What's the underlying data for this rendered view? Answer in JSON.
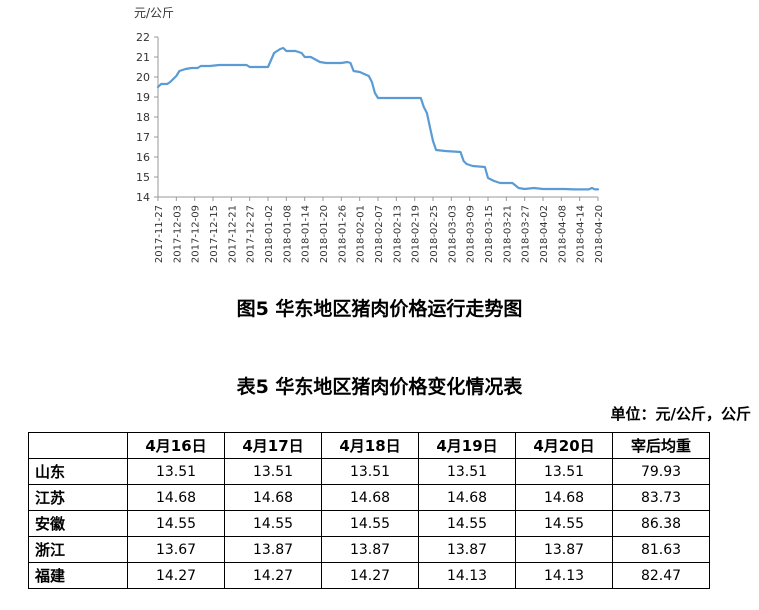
{
  "chart_data": {
    "type": "line",
    "title": "",
    "ylabel": "元/公斤",
    "xlabel": "",
    "ylim": [
      14,
      22
    ],
    "yticks": [
      14,
      15,
      16,
      17,
      18,
      19,
      20,
      21,
      22
    ],
    "grid": false,
    "legend": "none",
    "line_color": "#5B9BD5",
    "x_start": "2017-11-27",
    "x_end": "2018-04-20",
    "xtick_labels": [
      "2017-11-27",
      "2017-12-03",
      "2017-12-09",
      "2017-12-15",
      "2017-12-21",
      "2017-12-27",
      "2018-01-02",
      "2018-01-08",
      "2018-01-14",
      "2018-01-20",
      "2018-01-26",
      "2018-02-01",
      "2018-02-07",
      "2018-02-13",
      "2018-02-19",
      "2018-02-25",
      "2018-03-03",
      "2018-03-09",
      "2018-03-15",
      "2018-03-21",
      "2018-03-27",
      "2018-04-02",
      "2018-04-08",
      "2018-04-14",
      "2018-04-20"
    ],
    "series": [
      {
        "points": [
          {
            "x": "2017-11-27",
            "y": 19.5
          },
          {
            "x": "2017-11-28",
            "y": 19.65
          },
          {
            "x": "2017-11-30",
            "y": 19.65
          },
          {
            "x": "2017-12-01",
            "y": 19.75
          },
          {
            "x": "2017-12-03",
            "y": 20.05
          },
          {
            "x": "2017-12-04",
            "y": 20.3
          },
          {
            "x": "2017-12-06",
            "y": 20.4
          },
          {
            "x": "2017-12-08",
            "y": 20.45
          },
          {
            "x": "2017-12-10",
            "y": 20.45
          },
          {
            "x": "2017-12-11",
            "y": 20.55
          },
          {
            "x": "2017-12-14",
            "y": 20.55
          },
          {
            "x": "2017-12-17",
            "y": 20.6
          },
          {
            "x": "2017-12-26",
            "y": 20.6
          },
          {
            "x": "2017-12-27",
            "y": 20.5
          },
          {
            "x": "2018-01-02",
            "y": 20.5
          },
          {
            "x": "2018-01-04",
            "y": 21.2
          },
          {
            "x": "2018-01-06",
            "y": 21.4
          },
          {
            "x": "2018-01-07",
            "y": 21.45
          },
          {
            "x": "2018-01-08",
            "y": 21.3
          },
          {
            "x": "2018-01-11",
            "y": 21.3
          },
          {
            "x": "2018-01-13",
            "y": 21.2
          },
          {
            "x": "2018-01-14",
            "y": 21.0
          },
          {
            "x": "2018-01-16",
            "y": 21.0
          },
          {
            "x": "2018-01-19",
            "y": 20.75
          },
          {
            "x": "2018-01-21",
            "y": 20.7
          },
          {
            "x": "2018-01-26",
            "y": 20.7
          },
          {
            "x": "2018-01-28",
            "y": 20.75
          },
          {
            "x": "2018-01-29",
            "y": 20.7
          },
          {
            "x": "2018-01-30",
            "y": 20.3
          },
          {
            "x": "2018-02-01",
            "y": 20.25
          },
          {
            "x": "2018-02-04",
            "y": 20.05
          },
          {
            "x": "2018-02-05",
            "y": 19.75
          },
          {
            "x": "2018-02-06",
            "y": 19.2
          },
          {
            "x": "2018-02-07",
            "y": 18.95
          },
          {
            "x": "2018-02-21",
            "y": 18.95
          },
          {
            "x": "2018-02-22",
            "y": 18.5
          },
          {
            "x": "2018-02-23",
            "y": 18.2
          },
          {
            "x": "2018-02-24",
            "y": 17.5
          },
          {
            "x": "2018-02-25",
            "y": 16.8
          },
          {
            "x": "2018-02-26",
            "y": 16.35
          },
          {
            "x": "2018-03-01",
            "y": 16.3
          },
          {
            "x": "2018-03-06",
            "y": 16.25
          },
          {
            "x": "2018-03-07",
            "y": 15.8
          },
          {
            "x": "2018-03-08",
            "y": 15.65
          },
          {
            "x": "2018-03-10",
            "y": 15.55
          },
          {
            "x": "2018-03-14",
            "y": 15.5
          },
          {
            "x": "2018-03-15",
            "y": 14.95
          },
          {
            "x": "2018-03-17",
            "y": 14.8
          },
          {
            "x": "2018-03-19",
            "y": 14.7
          },
          {
            "x": "2018-03-23",
            "y": 14.7
          },
          {
            "x": "2018-03-25",
            "y": 14.45
          },
          {
            "x": "2018-03-27",
            "y": 14.4
          },
          {
            "x": "2018-03-30",
            "y": 14.45
          },
          {
            "x": "2018-04-02",
            "y": 14.4
          },
          {
            "x": "2018-04-04",
            "y": 14.4
          },
          {
            "x": "2018-04-09",
            "y": 14.4
          },
          {
            "x": "2018-04-12",
            "y": 14.38
          },
          {
            "x": "2018-04-17",
            "y": 14.38
          },
          {
            "x": "2018-04-18",
            "y": 14.45
          },
          {
            "x": "2018-04-19",
            "y": 14.38
          },
          {
            "x": "2018-04-20",
            "y": 14.38
          }
        ]
      }
    ]
  },
  "figure_caption": "图5 华东地区猪肉价格运行走势图",
  "table": {
    "title": "表5 华东地区猪肉价格变化情况表",
    "unit": "单位：元/公斤，公斤",
    "columns": [
      "4月16日",
      "4月17日",
      "4月18日",
      "4月19日",
      "4月20日",
      "宰后均重"
    ],
    "rows": [
      {
        "region": "山东",
        "values": [
          "13.51",
          "13.51",
          "13.51",
          "13.51",
          "13.51",
          "79.93"
        ]
      },
      {
        "region": "江苏",
        "values": [
          "14.68",
          "14.68",
          "14.68",
          "14.68",
          "14.68",
          "83.73"
        ]
      },
      {
        "region": "安徽",
        "values": [
          "14.55",
          "14.55",
          "14.55",
          "14.55",
          "14.55",
          "86.38"
        ]
      },
      {
        "region": "浙江",
        "values": [
          "13.67",
          "13.87",
          "13.87",
          "13.87",
          "13.87",
          "81.63"
        ]
      },
      {
        "region": "福建",
        "values": [
          "14.27",
          "14.27",
          "14.27",
          "14.13",
          "14.13",
          "82.47"
        ]
      }
    ]
  }
}
